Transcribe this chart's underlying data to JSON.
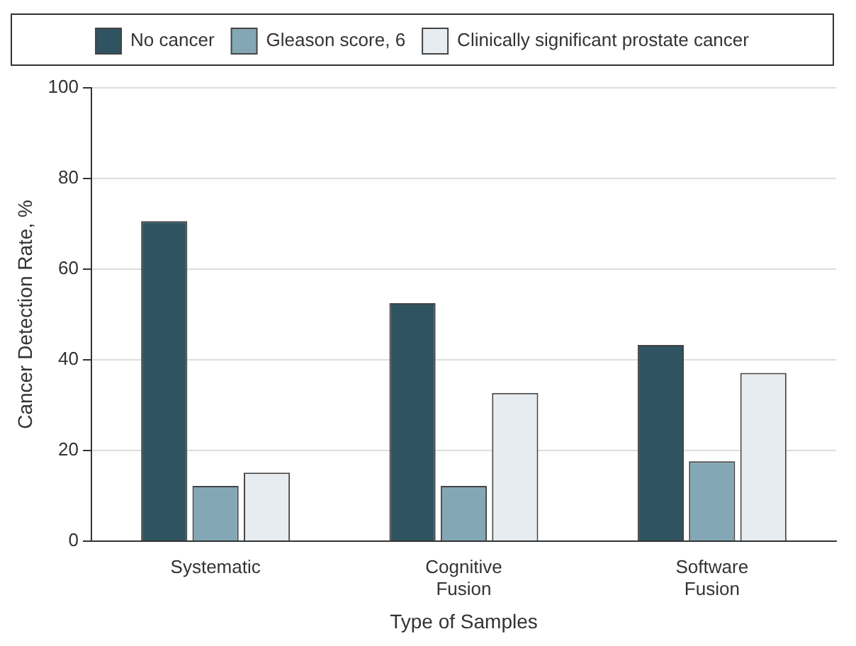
{
  "chart_data": {
    "type": "bar",
    "xlabel": "Type of Samples",
    "ylabel": "Cancer Detection Rate, %",
    "categories": [
      "Systematic",
      "Cognitive Fusion",
      "Software Fusion"
    ],
    "series": [
      {
        "name": "No cancer",
        "color": "#2f5361",
        "values": [
          70.6,
          52.5,
          43.3
        ]
      },
      {
        "name": "Gleason score, 6",
        "color": "#84a7b5",
        "values": [
          12.2,
          12.2,
          17.6
        ]
      },
      {
        "name": "Clinically significant prostate cancer",
        "color": "#e7ecf0",
        "values": [
          15.1,
          32.7,
          37.1
        ]
      }
    ],
    "ylim": [
      0,
      100
    ],
    "yticks": [
      0,
      20,
      40,
      60,
      80,
      100
    ],
    "grid": "y",
    "legend": "top"
  }
}
